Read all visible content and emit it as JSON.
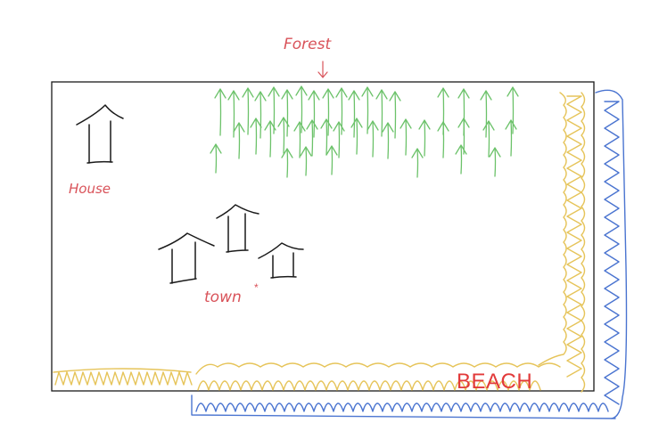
{
  "labels": {
    "forest": "Forest",
    "house": "House",
    "town": "town",
    "beach": "BEACH"
  },
  "colors": {
    "ink": "#1a1a1a",
    "label": "#d9535a",
    "trees": "#6cc26a",
    "sand": "#e6c45a",
    "water": "#4a74d0",
    "beach_label": "#e23a3a"
  },
  "icons": {
    "arrow": "down-arrow-icon",
    "house": "house-icon",
    "tree": "tree-icon",
    "asterisk": "asterisk-icon"
  }
}
